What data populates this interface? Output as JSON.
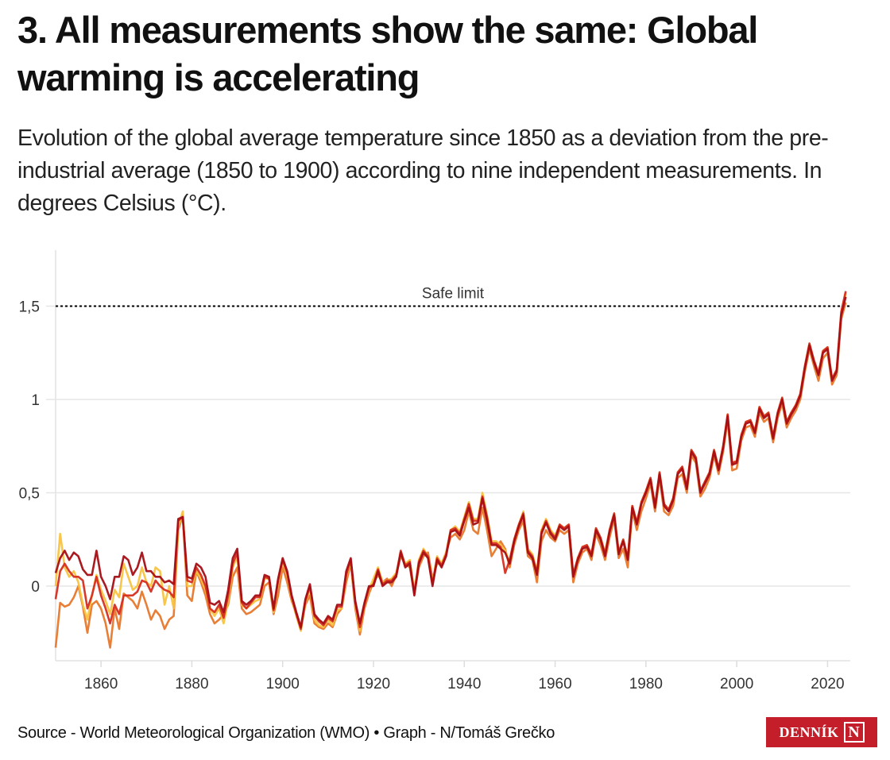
{
  "title": "3. All measurements show the same: Global warming is accelerating",
  "subtitle": "Evolution of the global average temperature since 1850 as a deviation from the pre-industrial average (1850 to 1900) according to nine independent measurements. In degrees Celsius (°C).",
  "source": "Source - World Meteorological Organization (WMO) • Graph - N/Tomáš Grečko",
  "logo": {
    "text": "DENNÍK",
    "mark": "N",
    "color": "#c41e2a"
  },
  "chart_data": {
    "type": "line",
    "title": "3. All measurements show the same: Global warming is accelerating",
    "xlabel": "",
    "ylabel": "",
    "xlim": [
      1850,
      2025
    ],
    "ylim": [
      -0.4,
      1.8
    ],
    "grid": "horizontal",
    "x_ticks": [
      1860,
      1880,
      1900,
      1920,
      1940,
      1960,
      1980,
      2000,
      2020
    ],
    "y_ticks": [
      {
        "value": 0,
        "label": "0"
      },
      {
        "value": 0.5,
        "label": "0,5"
      },
      {
        "value": 1,
        "label": "1"
      },
      {
        "value": 1.5,
        "label": "1,5"
      }
    ],
    "reference_line": {
      "value": 1.5,
      "label": "Safe limit",
      "style": "dotted",
      "color": "#000000"
    },
    "series": [
      {
        "color": "#e8782b",
        "start": 1850,
        "values": [
          -0.33,
          -0.09,
          -0.11,
          -0.1,
          -0.06,
          0.0,
          -0.11,
          -0.25,
          -0.1,
          -0.08,
          -0.12,
          -0.2,
          -0.33,
          -0.12,
          -0.23,
          -0.04,
          -0.06,
          -0.08,
          -0.12,
          -0.03,
          -0.1,
          -0.18,
          -0.13,
          -0.16,
          -0.23,
          -0.18,
          -0.16,
          0.3,
          0.38,
          -0.05,
          -0.08,
          0.08,
          0.02,
          -0.05,
          -0.15,
          -0.2,
          -0.18,
          -0.15,
          -0.1,
          0.05,
          0.1,
          -0.12,
          -0.15,
          -0.14,
          -0.12,
          -0.1,
          0.0,
          0.02,
          -0.15,
          -0.05,
          0.1,
          0.02,
          -0.08,
          -0.15,
          -0.23,
          -0.1,
          -0.05,
          -0.2,
          -0.22,
          -0.23,
          -0.2,
          -0.22,
          -0.15,
          -0.12,
          0.02,
          0.12,
          -0.12,
          -0.26,
          -0.12,
          -0.04,
          0.02,
          0.06,
          0.02,
          0.04,
          0.0,
          0.06,
          0.16,
          0.12,
          0.1,
          -0.04,
          0.1,
          0.16,
          0.18,
          0.04,
          0.12,
          0.12,
          0.18,
          0.26,
          0.28,
          0.25,
          0.3,
          0.4,
          0.3,
          0.28,
          0.42,
          0.3,
          0.16,
          0.2,
          0.24,
          0.2,
          0.1,
          0.22,
          0.3,
          0.35,
          0.16,
          0.14,
          0.02,
          0.24,
          0.3,
          0.26,
          0.24,
          0.3,
          0.28,
          0.3,
          0.02,
          0.12,
          0.18,
          0.2,
          0.14,
          0.28,
          0.22,
          0.14,
          0.26,
          0.36,
          0.15,
          0.2,
          0.1,
          0.4,
          0.3,
          0.4,
          0.47,
          0.55,
          0.4,
          0.58,
          0.4,
          0.38,
          0.43,
          0.58,
          0.6,
          0.5,
          0.7,
          0.66,
          0.48,
          0.52,
          0.58,
          0.7,
          0.6,
          0.72,
          0.89,
          0.62,
          0.63,
          0.78,
          0.85,
          0.86,
          0.8,
          0.93,
          0.88,
          0.9,
          0.77,
          0.9,
          0.98,
          0.85,
          0.9,
          0.94,
          1.0,
          1.15,
          1.27,
          1.18,
          1.1,
          1.22,
          1.25,
          1.08,
          1.13,
          1.43,
          1.52
        ]
      },
      {
        "color": "#f7c340",
        "start": 1850,
        "values": [
          0.0,
          0.28,
          0.1,
          0.05,
          0.08,
          0.02,
          -0.1,
          -0.18,
          -0.05,
          0.06,
          -0.02,
          -0.08,
          -0.15,
          -0.02,
          -0.06,
          0.12,
          0.05,
          -0.02,
          0.0,
          0.1,
          0.02,
          0.0,
          0.1,
          0.08,
          -0.1,
          0.0,
          -0.12,
          0.32,
          0.4,
          0.0,
          0.0,
          0.08,
          0.04,
          -0.02,
          -0.12,
          -0.16,
          -0.12,
          -0.2,
          -0.08,
          0.1,
          0.16,
          -0.1,
          -0.12,
          -0.1,
          -0.08,
          -0.07,
          0.04,
          0.04,
          -0.14,
          0.02,
          0.13,
          0.06,
          -0.07,
          -0.16,
          -0.24,
          -0.09,
          -0.01,
          -0.18,
          -0.21,
          -0.22,
          -0.18,
          -0.21,
          -0.13,
          -0.12,
          0.05,
          0.13,
          -0.1,
          -0.24,
          -0.1,
          -0.02,
          0.04,
          0.1,
          0.02,
          0.03,
          0.04,
          0.07,
          0.17,
          0.12,
          0.14,
          -0.03,
          0.14,
          0.2,
          0.16,
          0.02,
          0.16,
          0.12,
          0.18,
          0.3,
          0.32,
          0.29,
          0.37,
          0.45,
          0.36,
          0.36,
          0.5,
          0.38,
          0.24,
          0.24,
          0.22,
          0.19,
          0.13,
          0.25,
          0.33,
          0.4,
          0.2,
          0.17,
          0.08,
          0.3,
          0.36,
          0.3,
          0.27,
          0.33,
          0.31,
          0.33,
          0.06,
          0.15,
          0.21,
          0.22,
          0.17,
          0.31,
          0.26,
          0.18,
          0.3,
          0.39,
          0.18,
          0.25,
          0.15,
          0.43,
          0.34,
          0.45,
          0.51,
          0.58,
          0.43,
          0.61,
          0.44,
          0.41,
          0.47,
          0.61,
          0.64,
          0.53,
          0.73,
          0.69,
          0.51,
          0.56,
          0.61,
          0.73,
          0.63,
          0.75,
          0.92,
          0.66,
          0.67,
          0.81,
          0.88,
          0.89,
          0.83,
          0.96,
          0.91,
          0.93,
          0.8,
          0.93,
          1.01,
          0.88,
          0.93,
          0.97,
          1.03,
          1.18,
          1.3,
          1.21,
          1.14,
          1.26,
          1.28,
          1.11,
          1.16,
          1.46,
          1.57
        ]
      },
      {
        "color": "#d62e1f",
        "start": 1850,
        "values": [
          -0.07,
          0.08,
          0.12,
          0.08,
          0.05,
          0.05,
          0.03,
          -0.12,
          -0.05,
          0.05,
          -0.05,
          -0.12,
          -0.2,
          -0.1,
          -0.15,
          -0.05,
          -0.05,
          -0.05,
          -0.03,
          0.03,
          0.02,
          -0.03,
          0.03,
          0.0,
          -0.02,
          -0.03,
          -0.06,
          0.35,
          0.37,
          0.03,
          0.02,
          0.1,
          0.06,
          0.0,
          -0.12,
          -0.14,
          -0.1,
          -0.17,
          -0.05,
          0.12,
          0.18,
          -0.09,
          -0.12,
          -0.09,
          -0.06,
          -0.06,
          0.05,
          0.04,
          -0.13,
          0.03,
          0.14,
          0.07,
          -0.06,
          -0.15,
          -0.23,
          -0.08,
          0.0,
          -0.16,
          -0.19,
          -0.21,
          -0.17,
          -0.19,
          -0.11,
          -0.11,
          0.06,
          0.14,
          -0.09,
          -0.22,
          -0.1,
          -0.01,
          0.01,
          0.09,
          0.01,
          0.03,
          0.03,
          0.06,
          0.19,
          0.11,
          0.13,
          -0.04,
          0.13,
          0.19,
          0.16,
          0.01,
          0.15,
          0.11,
          0.17,
          0.3,
          0.31,
          0.28,
          0.36,
          0.44,
          0.35,
          0.35,
          0.48,
          0.37,
          0.23,
          0.23,
          0.21,
          0.07,
          0.14,
          0.25,
          0.33,
          0.39,
          0.19,
          0.16,
          0.07,
          0.29,
          0.35,
          0.29,
          0.26,
          0.33,
          0.31,
          0.33,
          0.06,
          0.15,
          0.21,
          0.22,
          0.17,
          0.31,
          0.26,
          0.17,
          0.3,
          0.39,
          0.18,
          0.25,
          0.15,
          0.43,
          0.34,
          0.45,
          0.51,
          0.58,
          0.43,
          0.61,
          0.44,
          0.41,
          0.47,
          0.61,
          0.64,
          0.53,
          0.73,
          0.69,
          0.51,
          0.56,
          0.61,
          0.73,
          0.63,
          0.75,
          0.92,
          0.66,
          0.67,
          0.81,
          0.88,
          0.89,
          0.83,
          0.96,
          0.91,
          0.93,
          0.8,
          0.93,
          1.01,
          0.88,
          0.93,
          0.97,
          1.03,
          1.18,
          1.3,
          1.21,
          1.14,
          1.26,
          1.28,
          1.11,
          1.16,
          1.47,
          1.58
        ]
      },
      {
        "color": "#a50f15",
        "start": 1850,
        "values": [
          0.07,
          0.15,
          0.19,
          0.14,
          0.18,
          0.16,
          0.09,
          0.06,
          0.06,
          0.19,
          0.05,
          0.0,
          -0.07,
          0.05,
          0.05,
          0.16,
          0.14,
          0.06,
          0.1,
          0.18,
          0.08,
          0.08,
          0.05,
          0.05,
          0.02,
          0.03,
          0.01,
          0.36,
          0.37,
          0.05,
          0.04,
          0.12,
          0.1,
          0.05,
          -0.09,
          -0.1,
          -0.08,
          -0.14,
          -0.02,
          0.15,
          0.2,
          -0.08,
          -0.1,
          -0.08,
          -0.05,
          -0.05,
          0.06,
          0.05,
          -0.12,
          0.04,
          0.15,
          0.08,
          -0.05,
          -0.14,
          -0.22,
          -0.07,
          0.01,
          -0.15,
          -0.18,
          -0.2,
          -0.16,
          -0.18,
          -0.1,
          -0.1,
          0.08,
          0.15,
          -0.08,
          -0.2,
          -0.09,
          0.0,
          0.0,
          0.08,
          0.0,
          0.02,
          0.02,
          0.05,
          0.18,
          0.1,
          0.12,
          -0.05,
          0.12,
          0.18,
          0.15,
          0.0,
          0.14,
          0.1,
          0.16,
          0.29,
          0.3,
          0.27,
          0.35,
          0.42,
          0.33,
          0.34,
          0.47,
          0.35,
          0.22,
          0.22,
          0.2,
          0.18,
          0.12,
          0.24,
          0.32,
          0.38,
          0.18,
          0.15,
          0.06,
          0.28,
          0.34,
          0.28,
          0.25,
          0.32,
          0.3,
          0.32,
          0.05,
          0.14,
          0.2,
          0.21,
          0.16,
          0.3,
          0.25,
          0.16,
          0.29,
          0.38,
          0.17,
          0.24,
          0.14,
          0.42,
          0.33,
          0.44,
          0.5,
          0.57,
          0.42,
          0.6,
          0.43,
          0.4,
          0.46,
          0.6,
          0.63,
          0.52,
          0.72,
          0.68,
          0.5,
          0.55,
          0.6,
          0.72,
          0.62,
          0.74,
          0.91,
          0.65,
          0.66,
          0.8,
          0.87,
          0.88,
          0.82,
          0.95,
          0.9,
          0.92,
          0.79,
          0.92,
          1.0,
          0.87,
          0.92,
          0.96,
          1.02,
          1.17,
          1.29,
          1.2,
          1.13,
          1.25,
          1.27,
          1.1,
          1.15,
          1.45,
          1.55
        ]
      }
    ]
  }
}
